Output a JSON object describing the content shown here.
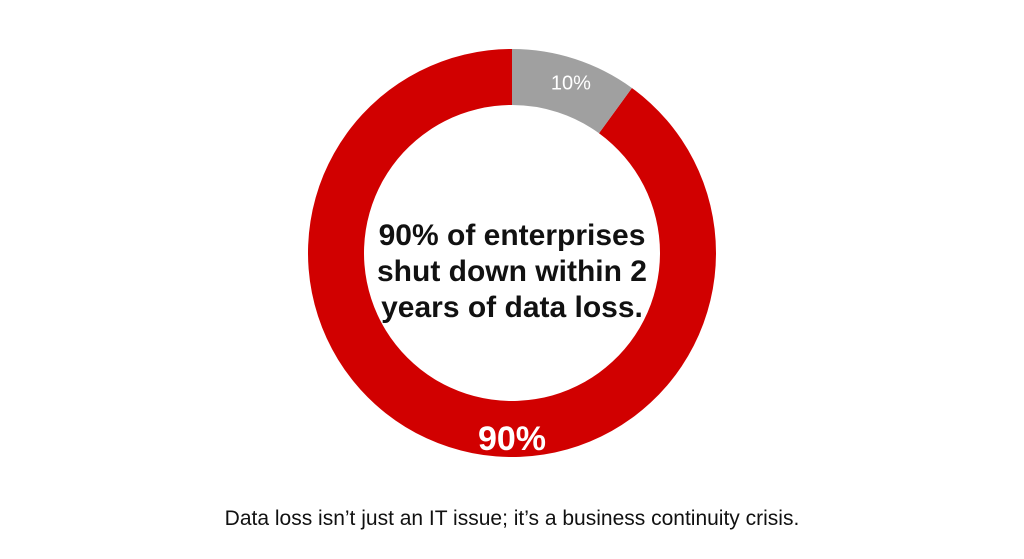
{
  "chart_data": {
    "type": "pie",
    "style": "donut",
    "slices": [
      {
        "label": "90%",
        "value": 90,
        "color": "#d10000",
        "label_color": "#ffffff"
      },
      {
        "label": "10%",
        "value": 10,
        "color": "#a0a0a0",
        "label_color": "#ffffff"
      }
    ],
    "center_text": [
      "90% of enterprises",
      "shut down within 2",
      "years of data loss."
    ],
    "caption": "Data loss isn’t just an IT issue; it’s a business continuity crisis."
  }
}
